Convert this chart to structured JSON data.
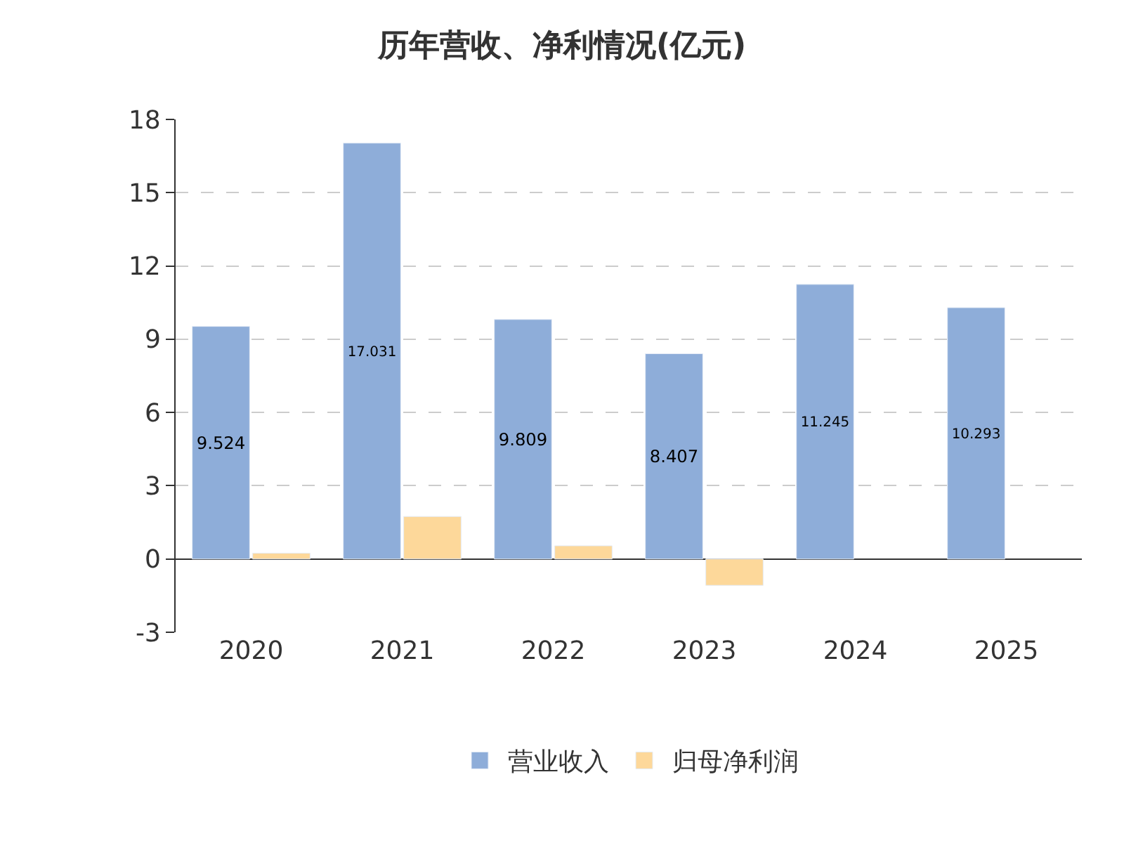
{
  "chart_data": {
    "type": "bar",
    "title": "历年营收、净利情况(亿元)",
    "categories": [
      "2020",
      "2021",
      "2022",
      "2023",
      "2024",
      "2025"
    ],
    "series": [
      {
        "name": "营业收入",
        "color": "#8eadd9",
        "values": [
          9.524,
          17.031,
          9.809,
          8.407,
          11.245,
          10.293
        ],
        "value_labels": [
          "9.524",
          "17.031",
          "9.809",
          "8.407",
          "11.245",
          "10.293"
        ]
      },
      {
        "name": "归母净利润",
        "color": "#fdd89a",
        "values": [
          0.24,
          1.74,
          0.54,
          -1.08,
          null,
          null
        ]
      }
    ],
    "ylim": [
      -3,
      18
    ],
    "yticks": [
      -3,
      0,
      3,
      6,
      9,
      12,
      15,
      18
    ],
    "grid": "y",
    "legend": "bottom"
  }
}
